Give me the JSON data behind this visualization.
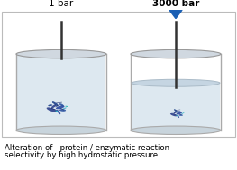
{
  "label_1bar": "1 bar",
  "label_3000bar": "3000 bar",
  "caption_line1": "Alteration of   protein / enzymatic reaction",
  "caption_line2": "selectivity by high hydrostatic pressure",
  "rod_color": "#333333",
  "arrow_color": "#1a5fb4",
  "cylinder_edge": "#aaaaaa",
  "water_fill": "#dde8f0",
  "water_surface": "#c5d5e2",
  "rim_fill": "#d0d8e0",
  "rim_edge": "#999999"
}
